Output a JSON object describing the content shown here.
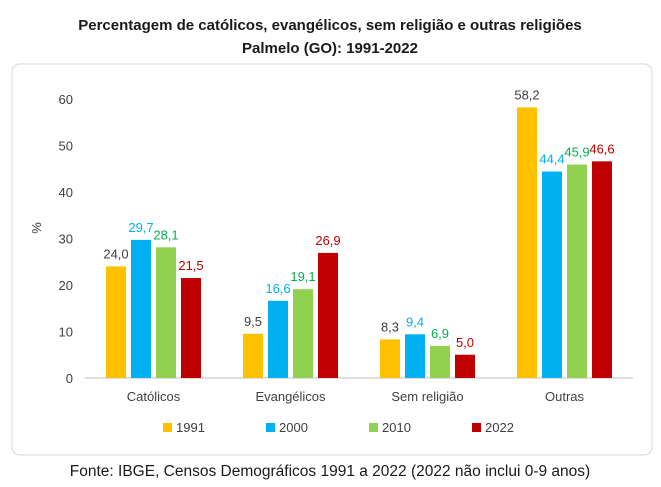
{
  "colors": {
    "s1991": "#FFC000",
    "s2000": "#00B0F0",
    "s2010": "#92D050",
    "s2022": "#C00000",
    "label_1991": "#404040",
    "label_2000": "#00B0F0",
    "label_2010": "#00B050",
    "label_2022": "#C00000",
    "axis": "#bfbfbf",
    "frame": "#d9d9d9"
  },
  "source": "Fonte: IBGE, Censos Demográficos 1991 a 2022 (2022 não inclui 0-9 anos)",
  "chart_data": {
    "type": "bar",
    "title": "Percentagem de católicos, evangélicos, sem religião e outras religiões",
    "subtitle": "Palmelo (GO): 1991-2022",
    "xlabel": "",
    "ylabel": "%",
    "ylim": [
      0,
      60
    ],
    "yticks": [
      "0",
      "10",
      "20",
      "30",
      "40",
      "50",
      "60"
    ],
    "grid": false,
    "legend_position": "bottom",
    "categories": [
      "Católicos",
      "Evangélicos",
      "Sem religião",
      "Outras"
    ],
    "series": [
      {
        "name": "1991",
        "values": [
          24.0,
          9.5,
          8.3,
          58.2
        ],
        "labels": [
          "24,0",
          "9,5",
          "8,3",
          "58,2"
        ]
      },
      {
        "name": "2000",
        "values": [
          29.7,
          16.6,
          9.4,
          44.4
        ],
        "labels": [
          "29,7",
          "16,6",
          "9,4",
          "44,4"
        ]
      },
      {
        "name": "2010",
        "values": [
          28.1,
          19.1,
          6.9,
          45.9
        ],
        "labels": [
          "28,1",
          "19,1",
          "6,9",
          "45,9"
        ]
      },
      {
        "name": "2022",
        "values": [
          21.5,
          26.9,
          5.0,
          46.6
        ],
        "labels": [
          "21,5",
          "26,9",
          "5,0",
          "46,6"
        ]
      }
    ]
  }
}
